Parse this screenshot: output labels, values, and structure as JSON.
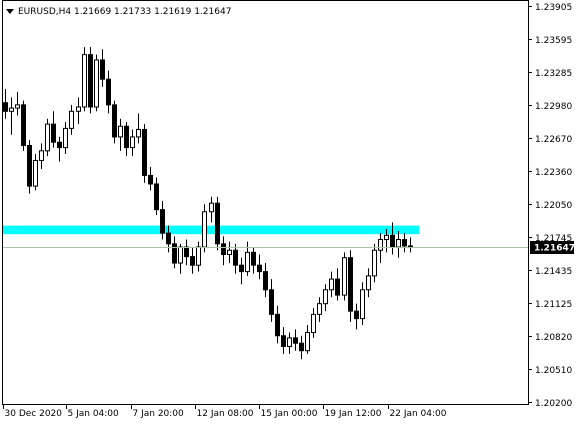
{
  "chart_data": {
    "type": "candlestick",
    "title": "EURUSD,H4  1.21669 1.21733 1.21619 1.21647",
    "symbol": "EURUSD",
    "timeframe": "H4",
    "ohlc_header": [
      "1.21669",
      "1.21733",
      "1.21619",
      "1.21647"
    ],
    "current_price": "1.21647",
    "ylim": [
      1.202,
      1.23905
    ],
    "y_ticks": [
      "1.23905",
      "1.23595",
      "1.23285",
      "1.22980",
      "1.22670",
      "1.22360",
      "1.22050",
      "1.21745",
      "1.21435",
      "1.21125",
      "1.20820",
      "1.20510",
      "1.20200"
    ],
    "x_ticks": [
      "30 Dec 2020",
      "5 Jan 04:00",
      "7 Jan 20:00",
      "12 Jan 08:00",
      "15 Jan 00:00",
      "19 Jan 12:00",
      "22 Jan 04:00"
    ],
    "grid": false,
    "horizontal_zone": {
      "low": 1.2177,
      "high": 1.2185,
      "color": "#00ffff"
    },
    "price_line": {
      "value": 1.21647,
      "color": "#a9c4a9"
    },
    "colors": {
      "bull": "#ffffff",
      "bear": "#000000",
      "wick": "#000000",
      "axis": "#000000",
      "tag_bg": "#000000"
    },
    "candles": [
      [
        1.23,
        1.2313,
        1.2285,
        1.2292
      ],
      [
        1.2292,
        1.2305,
        1.227,
        1.2295
      ],
      [
        1.2295,
        1.231,
        1.2288,
        1.2298
      ],
      [
        1.2298,
        1.2302,
        1.2255,
        1.226
      ],
      [
        1.226,
        1.2265,
        1.2215,
        1.2222
      ],
      [
        1.2222,
        1.2252,
        1.2218,
        1.2246
      ],
      [
        1.2246,
        1.2262,
        1.2238,
        1.2255
      ],
      [
        1.2255,
        1.2285,
        1.225,
        1.228
      ],
      [
        1.228,
        1.2292,
        1.2258,
        1.2263
      ],
      [
        1.2263,
        1.2268,
        1.2245,
        1.2258
      ],
      [
        1.2258,
        1.2282,
        1.2252,
        1.2276
      ],
      [
        1.2276,
        1.2298,
        1.227,
        1.2292
      ],
      [
        1.2292,
        1.2305,
        1.228,
        1.2296
      ],
      [
        1.2296,
        1.2352,
        1.2292,
        1.2345
      ],
      [
        1.2345,
        1.2352,
        1.229,
        1.2296
      ],
      [
        1.2296,
        1.2345,
        1.2292,
        1.234
      ],
      [
        1.234,
        1.235,
        1.2315,
        1.2322
      ],
      [
        1.2322,
        1.233,
        1.229,
        1.2298
      ],
      [
        1.2298,
        1.2302,
        1.2262,
        1.2268
      ],
      [
        1.2268,
        1.2285,
        1.2255,
        1.2278
      ],
      [
        1.2278,
        1.2282,
        1.225,
        1.2258
      ],
      [
        1.2258,
        1.2275,
        1.225,
        1.2268
      ],
      [
        1.2268,
        1.229,
        1.2262,
        1.2275
      ],
      [
        1.2275,
        1.228,
        1.2225,
        1.2232
      ],
      [
        1.2232,
        1.224,
        1.2218,
        1.2224
      ],
      [
        1.2224,
        1.223,
        1.2195,
        1.22
      ],
      [
        1.22,
        1.2208,
        1.2172,
        1.2178
      ],
      [
        1.2178,
        1.2185,
        1.216,
        1.2168
      ],
      [
        1.2168,
        1.2175,
        1.2145,
        1.215
      ],
      [
        1.215,
        1.2168,
        1.214,
        1.2165
      ],
      [
        1.2165,
        1.2172,
        1.2148,
        1.2156
      ],
      [
        1.2156,
        1.2165,
        1.214,
        1.2148
      ],
      [
        1.2148,
        1.217,
        1.2142,
        1.2165
      ],
      [
        1.2165,
        1.2205,
        1.216,
        1.2198
      ],
      [
        1.2198,
        1.2212,
        1.2188,
        1.2206
      ],
      [
        1.2206,
        1.2212,
        1.2162,
        1.2168
      ],
      [
        1.2168,
        1.2175,
        1.2148,
        1.2158
      ],
      [
        1.2158,
        1.217,
        1.215,
        1.2162
      ],
      [
        1.2162,
        1.2168,
        1.214,
        1.2148
      ],
      [
        1.2148,
        1.2155,
        1.213,
        1.2142
      ],
      [
        1.2142,
        1.217,
        1.2138,
        1.216
      ],
      [
        1.216,
        1.2165,
        1.214,
        1.2148
      ],
      [
        1.2148,
        1.2158,
        1.2135,
        1.2142
      ],
      [
        1.2142,
        1.215,
        1.2118,
        1.2125
      ],
      [
        1.2125,
        1.2135,
        1.2095,
        1.2102
      ],
      [
        1.2102,
        1.211,
        1.2075,
        1.2082
      ],
      [
        1.2082,
        1.209,
        1.2065,
        1.2072
      ],
      [
        1.2072,
        1.2085,
        1.2065,
        1.208
      ],
      [
        1.208,
        1.2088,
        1.2068,
        1.2075
      ],
      [
        1.2075,
        1.2082,
        1.206,
        1.2068
      ],
      [
        1.2068,
        1.2092,
        1.2065,
        1.2085
      ],
      [
        1.2085,
        1.2108,
        1.208,
        1.2102
      ],
      [
        1.2102,
        1.2118,
        1.2095,
        1.2112
      ],
      [
        1.2112,
        1.213,
        1.2105,
        1.2125
      ],
      [
        1.2125,
        1.2142,
        1.2118,
        1.2135
      ],
      [
        1.2135,
        1.2145,
        1.2115,
        1.212
      ],
      [
        1.212,
        1.216,
        1.2115,
        1.2155
      ],
      [
        1.2155,
        1.2162,
        1.2095,
        1.2105
      ],
      [
        1.2105,
        1.2112,
        1.2088,
        1.2098
      ],
      [
        1.2098,
        1.2132,
        1.2092,
        1.2125
      ],
      [
        1.2125,
        1.2145,
        1.2118,
        1.2138
      ],
      [
        1.2138,
        1.2168,
        1.2132,
        1.2162
      ],
      [
        1.2162,
        1.2178,
        1.215,
        1.2172
      ],
      [
        1.2172,
        1.2182,
        1.216,
        1.2176
      ],
      [
        1.2176,
        1.2188,
        1.2158,
        1.2165
      ],
      [
        1.2165,
        1.218,
        1.2155,
        1.2172
      ],
      [
        1.2172,
        1.2178,
        1.216,
        1.2166
      ],
      [
        1.2166,
        1.2174,
        1.216,
        1.2165
      ]
    ]
  }
}
